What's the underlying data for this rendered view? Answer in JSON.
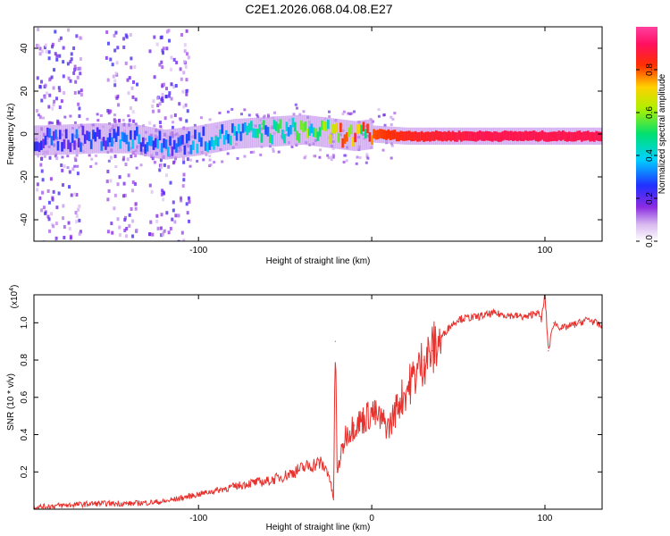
{
  "chart_data": [
    {
      "type": "heatmap",
      "title": "C2E1.2026.068.04.08.E27",
      "xlabel": "Height of straight line (km)",
      "ylabel": "Frequency (Hz)",
      "xlim": [
        -195,
        133
      ],
      "ylim": [
        -50,
        50
      ],
      "xticks": [
        -100,
        0,
        100
      ],
      "xtick_labels": [
        "-100",
        "",
        "100"
      ],
      "yticks": [
        -40,
        -20,
        0,
        20,
        40
      ],
      "ytick_labels": [
        "-40",
        "-20",
        "0",
        "20",
        "40"
      ],
      "colorbar": {
        "label": "Normalized spectral amplitude",
        "range": [
          0,
          1
        ],
        "ticks": [
          0,
          0.2,
          0.4,
          0.6,
          0.8
        ],
        "tick_labels": [
          "0.0",
          "0.2",
          "0.4",
          "0.6",
          "0.8"
        ],
        "colormap": "rainbow (white-violet-blue-cyan-green-yellow-red-magenta)"
      },
      "ridge": {
        "description": "Dominant frequency trace near 0 Hz; scattered and weak below about -20 km, strong and steady above about 0 km",
        "x": [
          -190,
          -160,
          -140,
          -120,
          -100,
          -80,
          -60,
          -40,
          -30,
          -20,
          -10,
          0,
          20,
          60,
          100,
          133
        ],
        "y": [
          -3,
          -2,
          -2,
          -5,
          -3,
          0,
          1,
          2,
          1,
          0,
          -1,
          0,
          -1,
          -1,
          -1,
          -1
        ],
        "amplitude": [
          0.25,
          0.3,
          0.35,
          0.3,
          0.35,
          0.4,
          0.45,
          0.5,
          0.6,
          0.7,
          0.75,
          0.8,
          0.85,
          0.9,
          0.9,
          0.9
        ]
      }
    },
    {
      "type": "line",
      "title": "",
      "xlabel": "Height of straight line (km)",
      "ylabel": "SNR (10 * v/v)",
      "y_scale_label": "(x10",
      "y_scale_exponent": "4",
      "y_scale_suffix": ")",
      "xlim": [
        -195,
        133
      ],
      "ylim": [
        0,
        1.15
      ],
      "xticks": [
        -100,
        0,
        100
      ],
      "xtick_labels": [
        "-100",
        "0",
        "100"
      ],
      "yticks": [
        0.2,
        0.4,
        0.6,
        0.8,
        1.0
      ],
      "ytick_labels": [
        "0.2",
        "0.4",
        "0.6",
        "0.8",
        "1.0"
      ],
      "color": "#e8302c",
      "series": [
        {
          "name": "SNR",
          "x": [
            -195,
            -180,
            -160,
            -140,
            -120,
            -110,
            -100,
            -90,
            -80,
            -70,
            -60,
            -50,
            -40,
            -30,
            -25,
            -22,
            -21,
            -20,
            -18,
            -15,
            -10,
            -5,
            0,
            5,
            10,
            15,
            20,
            25,
            30,
            35,
            40,
            45,
            50,
            60,
            70,
            80,
            90,
            95,
            98,
            100,
            102,
            105,
            110,
            120,
            125,
            133
          ],
          "y": [
            0.01,
            0.02,
            0.03,
            0.03,
            0.04,
            0.06,
            0.08,
            0.1,
            0.12,
            0.14,
            0.15,
            0.18,
            0.22,
            0.25,
            0.2,
            0.05,
            0.9,
            0.2,
            0.28,
            0.4,
            0.45,
            0.48,
            0.52,
            0.48,
            0.44,
            0.56,
            0.64,
            0.72,
            0.8,
            0.85,
            0.92,
            0.98,
            1.02,
            1.03,
            1.05,
            1.04,
            1.03,
            1.06,
            1.02,
            1.15,
            0.85,
            1.0,
            0.97,
            1.0,
            1.02,
            0.98
          ]
        }
      ]
    }
  ],
  "palette": {
    "line": "#e8302c",
    "axis": "#000000",
    "background": "#ffffff"
  }
}
